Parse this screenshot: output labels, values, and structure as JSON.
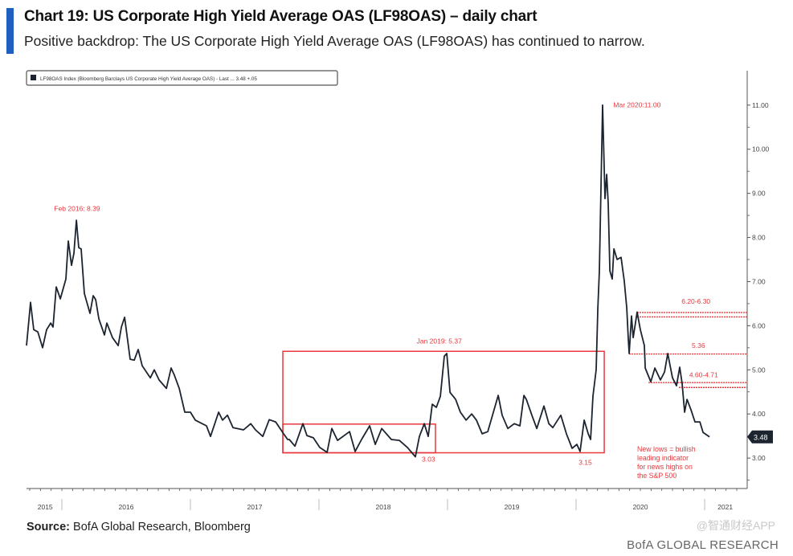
{
  "header": {
    "title": "Chart 19: US Corporate High Yield Average OAS (LF98OAS) – daily chart",
    "subtitle": "Positive backdrop: The US Corporate High Yield Average OAS (LF98OAS) has continued to narrow."
  },
  "footer": {
    "source_label": "Source:",
    "source_text": "BofA Global Research, Bloomberg",
    "brand": "BofA GLOBAL RESEARCH",
    "watermark": "@智通财经APP"
  },
  "colors": {
    "line": "#1c2430",
    "annotation": "#e8383d",
    "accent": "#1f5fbf",
    "axis": "#555555"
  },
  "chart_data": {
    "type": "line",
    "title": "Chart 19: US Corporate High Yield Average OAS (LF98OAS) – daily chart",
    "legend": {
      "text": "LF98OAS Index (Bloomberg Barclays US Corporate High Yield Average OAS) - Last ... 3.48   +.05",
      "placement": "top-left"
    },
    "xlabel": "",
    "ylabel": "",
    "xlim": [
      2015.7375,
      2021.331
    ],
    "ylim": [
      2.31,
      11.78
    ],
    "y_ticks": [
      3,
      4,
      5,
      6,
      7,
      8,
      9,
      10,
      11
    ],
    "y_tick_labels": [
      "3.00",
      "4.00",
      "5.00",
      "6.00",
      "7.00",
      "8.00",
      "9.00",
      "10.00",
      "11.00"
    ],
    "x_year_labels": [
      {
        "label": "2015",
        "center": 2015.87
      },
      {
        "label": "2016",
        "center": 2016.5
      },
      {
        "label": "2017",
        "center": 2017.5
      },
      {
        "label": "2018",
        "center": 2018.5
      },
      {
        "label": "2019",
        "center": 2019.5
      },
      {
        "label": "2020",
        "center": 2020.5
      },
      {
        "label": "2021",
        "center": 2021.16
      }
    ],
    "year_boundaries": [
      2016,
      2017,
      2018,
      2019,
      2020,
      2021
    ],
    "last_value_label": "3.48",
    "series": [
      {
        "name": "LF98OAS",
        "x": [
          2015.725,
          2015.75,
          2015.756,
          2015.781,
          2015.813,
          2015.85,
          2015.881,
          2015.913,
          2015.931,
          2015.956,
          2015.988,
          2016.031,
          2016.05,
          2016.075,
          2016.094,
          2016.113,
          2016.131,
          2016.15,
          2016.175,
          2016.219,
          2016.244,
          2016.263,
          2016.288,
          2016.331,
          2016.35,
          2016.394,
          2016.438,
          2016.463,
          2016.488,
          2016.531,
          2016.563,
          2016.594,
          2016.625,
          2016.688,
          2016.719,
          2016.756,
          2016.813,
          2016.85,
          2016.875,
          2016.913,
          2016.956,
          2017.0,
          2017.038,
          2017.125,
          2017.156,
          2017.219,
          2017.25,
          2017.288,
          2017.331,
          2017.413,
          2017.469,
          2017.506,
          2017.563,
          2017.613,
          2017.663,
          2017.725,
          2017.756,
          2017.769,
          2017.813,
          2017.875,
          2017.906,
          2017.956,
          2018.006,
          2018.063,
          2018.1,
          2018.144,
          2018.238,
          2018.281,
          2018.331,
          2018.394,
          2018.438,
          2018.488,
          2018.563,
          2018.625,
          2018.688,
          2018.75,
          2018.781,
          2018.819,
          2018.85,
          2018.881,
          2018.913,
          2018.944,
          2018.975,
          2018.994,
          2019.019,
          2019.063,
          2019.1,
          2019.144,
          2019.188,
          2019.225,
          2019.269,
          2019.313,
          2019.35,
          2019.394,
          2019.425,
          2019.469,
          2019.519,
          2019.563,
          2019.594,
          2019.613,
          2019.656,
          2019.694,
          2019.75,
          2019.788,
          2019.819,
          2019.881,
          2019.925,
          2019.969,
          2020.006,
          2020.031,
          2020.063,
          2020.094,
          2020.113,
          2020.131,
          2020.156,
          2020.169,
          2020.181,
          2020.206,
          2020.225,
          2020.238,
          2020.25,
          2020.263,
          2020.281,
          2020.294,
          2020.319,
          2020.35,
          2020.375,
          2020.394,
          2020.406,
          2020.413,
          2020.431,
          2020.444,
          2020.475,
          2020.5,
          2020.531,
          2020.538,
          2020.581,
          2020.613,
          2020.656,
          2020.688,
          2020.713,
          2020.75,
          2020.781,
          2020.806,
          2020.825,
          2020.844,
          2020.863,
          2020.894,
          2020.925,
          2020.963,
          2020.988,
          2021.038
        ],
        "values": [
          5.55,
          6.33,
          6.53,
          5.91,
          5.86,
          5.5,
          5.91,
          6.06,
          5.97,
          6.88,
          6.61,
          7.06,
          7.92,
          7.37,
          7.64,
          8.39,
          7.77,
          7.74,
          6.73,
          6.28,
          6.68,
          6.59,
          6.15,
          5.79,
          6.06,
          5.73,
          5.55,
          5.97,
          6.19,
          5.24,
          5.22,
          5.46,
          5.09,
          4.82,
          5.0,
          4.77,
          4.58,
          5.04,
          4.88,
          4.58,
          4.04,
          4.04,
          3.86,
          3.73,
          3.49,
          4.04,
          3.86,
          3.97,
          3.69,
          3.64,
          3.78,
          3.64,
          3.49,
          3.87,
          3.82,
          3.55,
          3.42,
          3.42,
          3.27,
          3.78,
          3.51,
          3.46,
          3.24,
          3.13,
          3.67,
          3.4,
          3.6,
          3.15,
          3.42,
          3.73,
          3.31,
          3.67,
          3.42,
          3.4,
          3.24,
          3.03,
          3.49,
          3.78,
          3.49,
          4.22,
          4.15,
          4.4,
          5.31,
          5.37,
          4.49,
          4.33,
          4.04,
          3.86,
          4.0,
          3.86,
          3.55,
          3.6,
          3.97,
          4.42,
          3.97,
          3.67,
          3.78,
          3.73,
          4.42,
          4.33,
          3.97,
          3.67,
          4.18,
          3.78,
          3.69,
          3.97,
          3.55,
          3.22,
          3.31,
          3.15,
          3.86,
          3.55,
          3.42,
          4.4,
          5.0,
          6.4,
          7.24,
          11.0,
          8.88,
          9.43,
          8.77,
          7.24,
          7.06,
          7.74,
          7.5,
          7.55,
          7.01,
          6.4,
          5.7,
          5.37,
          6.22,
          5.73,
          6.31,
          5.91,
          5.55,
          5.04,
          4.73,
          5.04,
          4.77,
          4.95,
          5.37,
          4.82,
          4.64,
          5.06,
          4.69,
          4.04,
          4.33,
          4.09,
          3.82,
          3.82,
          3.58,
          3.48
        ]
      }
    ],
    "annotations": {
      "boxes": [
        {
          "name": "range-box-2017-2020",
          "x": [
            2017.719,
            2020.219
          ],
          "y": [
            3.12,
            5.42
          ]
        },
        {
          "name": "range-box-2017-2018",
          "x": [
            2017.719,
            2018.906
          ],
          "y": [
            3.12,
            3.77
          ]
        }
      ],
      "levels": [
        {
          "value": 6.3,
          "from": 2020.475
        },
        {
          "value": 6.2,
          "from": 2020.475
        },
        {
          "value": 5.36,
          "from": 2020.413
        },
        {
          "value": 4.71,
          "from": 2020.563
        },
        {
          "value": 4.6,
          "from": 2020.8
        }
      ],
      "labels": [
        {
          "text": "Feb 2016: 8.39",
          "x": 2015.94,
          "y": 8.6
        },
        {
          "text": "Jan 2019: 5.37",
          "x": 2018.76,
          "y": 5.6
        },
        {
          "text": "Mar 2020:11.00",
          "x": 2020.29,
          "y": 10.95
        },
        {
          "text": "3.03",
          "x": 2018.8,
          "y": 2.92
        },
        {
          "text": "3.15",
          "x": 2020.02,
          "y": 2.85
        },
        {
          "text": "6.20-6.30",
          "x": 2020.82,
          "y": 6.5
        },
        {
          "text": "5.36",
          "x": 2020.9,
          "y": 5.5
        },
        {
          "text": "4.60-4.71",
          "x": 2020.88,
          "y": 4.83
        }
      ],
      "note": [
        "New lows = bullish",
        "leading indicator",
        "for news highs on",
        "the S&P 500"
      ]
    }
  }
}
